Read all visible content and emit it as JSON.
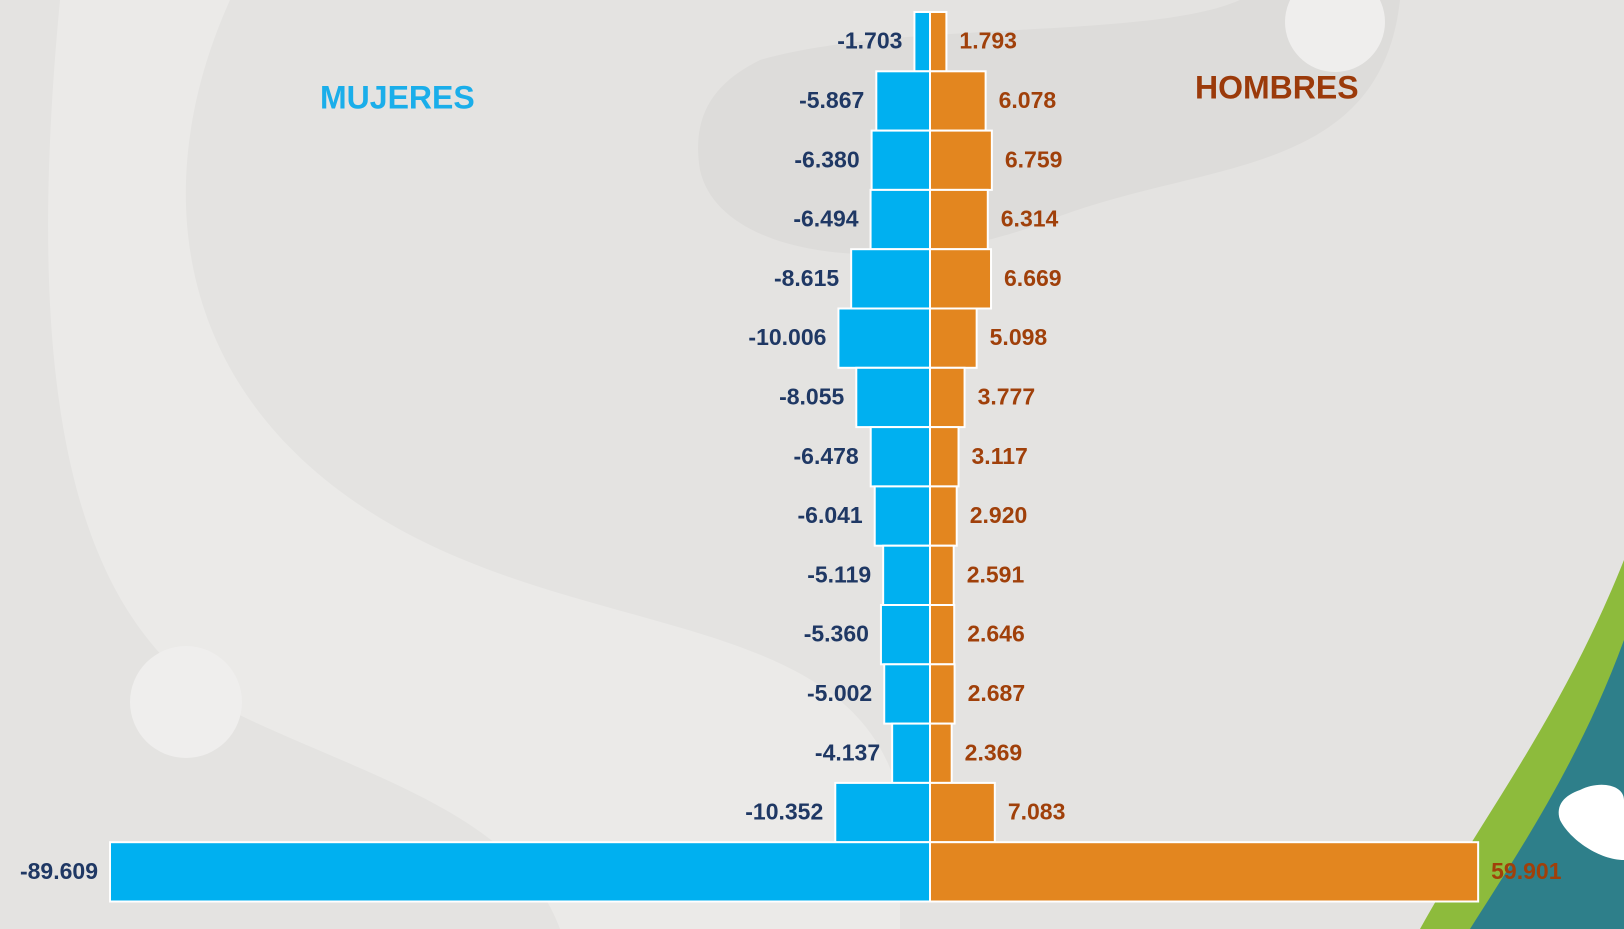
{
  "chart_data": {
    "type": "bar",
    "orientation": "horizontal",
    "categories": [
      null,
      null,
      null,
      null,
      null,
      null,
      null,
      null,
      null,
      null,
      null,
      null,
      null,
      null,
      null
    ],
    "series": [
      {
        "name": "MUJERES",
        "color": "#00b0f0",
        "label_color": "#1f3864",
        "legend_color": "#1aaeea",
        "values": [
          -1.703,
          -5.867,
          -6.38,
          -6.494,
          -8.615,
          -10.006,
          -8.055,
          -6.478,
          -6.041,
          -5.119,
          -5.36,
          -5.002,
          -4.137,
          -10.352,
          -89.609
        ],
        "value_labels": [
          "-1.703",
          "-5.867",
          "-6.380",
          "-6.494",
          "-8.615",
          "-10.006",
          "-8.055",
          "-6.478",
          "-6.041",
          "-5.119",
          "-5.360",
          "-5.002",
          "-4.137",
          "-10.352",
          "-89.609"
        ]
      },
      {
        "name": "HOMBRES",
        "color": "#e3861f",
        "label_color": "#a0400a",
        "legend_color": "#9b3a0a",
        "values": [
          1.793,
          6.078,
          6.759,
          6.314,
          6.669,
          5.098,
          3.777,
          3.117,
          2.92,
          2.591,
          2.646,
          2.687,
          2.369,
          7.083,
          59.901
        ],
        "value_labels": [
          "1.793",
          "6.078",
          "6.759",
          "6.314",
          "6.669",
          "5.098",
          "3.777",
          "3.117",
          "2.920",
          "2.591",
          "2.646",
          "2.687",
          "2.369",
          "7.083",
          "59.901"
        ]
      }
    ]
  }
}
